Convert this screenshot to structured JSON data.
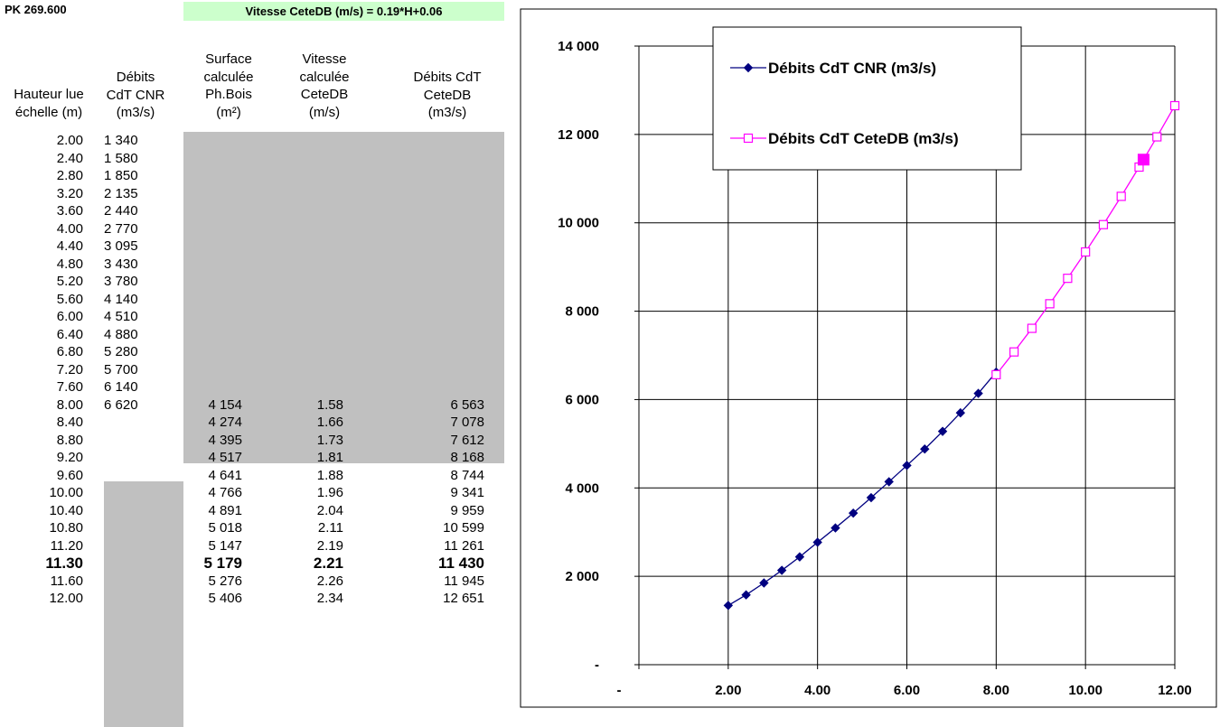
{
  "header": {
    "pk": "PK  269.600",
    "formula": "Vitesse CeteDB (m/s) = 0.19*H+0.06"
  },
  "table": {
    "columns": [
      "Hauteur lue\néchelle (m)",
      "Débits\nCdT CNR\n(m3/s)",
      "Surface\ncalculée\nPh.Bois\n(m²)",
      "Vitesse\ncalculée\nCeteDB\n(m/s)",
      "Débits CdT\nCeteDB\n(m3/s)"
    ],
    "rows": [
      {
        "h": "2.00",
        "cnr": "1 340",
        "s": "",
        "v": "",
        "q": ""
      },
      {
        "h": "2.40",
        "cnr": "1 580",
        "s": "",
        "v": "",
        "q": ""
      },
      {
        "h": "2.80",
        "cnr": "1 850",
        "s": "",
        "v": "",
        "q": ""
      },
      {
        "h": "3.20",
        "cnr": "2 135",
        "s": "",
        "v": "",
        "q": ""
      },
      {
        "h": "3.60",
        "cnr": "2 440",
        "s": "",
        "v": "",
        "q": ""
      },
      {
        "h": "4.00",
        "cnr": "2 770",
        "s": "",
        "v": "",
        "q": ""
      },
      {
        "h": "4.40",
        "cnr": "3 095",
        "s": "",
        "v": "",
        "q": ""
      },
      {
        "h": "4.80",
        "cnr": "3 430",
        "s": "",
        "v": "",
        "q": ""
      },
      {
        "h": "5.20",
        "cnr": "3 780",
        "s": "",
        "v": "",
        "q": ""
      },
      {
        "h": "5.60",
        "cnr": "4 140",
        "s": "",
        "v": "",
        "q": ""
      },
      {
        "h": "6.00",
        "cnr": "4 510",
        "s": "",
        "v": "",
        "q": ""
      },
      {
        "h": "6.40",
        "cnr": "4 880",
        "s": "",
        "v": "",
        "q": ""
      },
      {
        "h": "6.80",
        "cnr": "5 280",
        "s": "",
        "v": "",
        "q": ""
      },
      {
        "h": "7.20",
        "cnr": "5 700",
        "s": "",
        "v": "",
        "q": ""
      },
      {
        "h": "7.60",
        "cnr": "6 140",
        "s": "",
        "v": "",
        "q": ""
      },
      {
        "h": "8.00",
        "cnr": "6 620",
        "s": "4 154",
        "v": "1.58",
        "q": "6 563"
      },
      {
        "h": "8.40",
        "cnr": "",
        "s": "4 274",
        "v": "1.66",
        "q": "7 078"
      },
      {
        "h": "8.80",
        "cnr": "",
        "s": "4 395",
        "v": "1.73",
        "q": "7 612"
      },
      {
        "h": "9.20",
        "cnr": "",
        "s": "4 517",
        "v": "1.81",
        "q": "8 168"
      },
      {
        "h": "9.60",
        "cnr": "",
        "s": "4 641",
        "v": "1.88",
        "q": "8 744"
      },
      {
        "h": "10.00",
        "cnr": "",
        "s": "4 766",
        "v": "1.96",
        "q": "9 341"
      },
      {
        "h": "10.40",
        "cnr": "",
        "s": "4 891",
        "v": "2.04",
        "q": "9 959"
      },
      {
        "h": "10.80",
        "cnr": "",
        "s": "5 018",
        "v": "2.11",
        "q": "10 599"
      },
      {
        "h": "11.20",
        "cnr": "",
        "s": "5 147",
        "v": "2.19",
        "q": "11 261"
      },
      {
        "h": "11.30",
        "cnr": "",
        "s": "5 179",
        "v": "2.21",
        "q": "11 430",
        "bold": true
      },
      {
        "h": "11.60",
        "cnr": "",
        "s": "5 276",
        "v": "2.26",
        "q": "11 945"
      },
      {
        "h": "12.00",
        "cnr": "",
        "s": "5 406",
        "v": "2.34",
        "q": "12 651"
      }
    ]
  },
  "chart_data": {
    "type": "line",
    "title": "",
    "xlabel": "",
    "ylabel": "",
    "xlim": [
      0,
      12
    ],
    "ylim": [
      0,
      14000
    ],
    "x_ticks": [
      0,
      2,
      4,
      6,
      8,
      10,
      12
    ],
    "x_tick_labels": [
      "-",
      "2.00",
      "4.00",
      "6.00",
      "8.00",
      "10.00",
      "12.00"
    ],
    "y_ticks": [
      0,
      2000,
      4000,
      6000,
      8000,
      10000,
      12000,
      14000
    ],
    "y_tick_labels": [
      "-",
      "2 000",
      "4 000",
      "6 000",
      "8 000",
      "10 000",
      "12 000",
      "14 000"
    ],
    "grid": true,
    "legend_position": "top-right",
    "series": [
      {
        "name": "Débits CdT CNR (m3/s)",
        "color": "#000080",
        "marker": "diamond",
        "x": [
          2.0,
          2.4,
          2.8,
          3.2,
          3.6,
          4.0,
          4.4,
          4.8,
          5.2,
          5.6,
          6.0,
          6.4,
          6.8,
          7.2,
          7.6,
          8.0
        ],
        "y": [
          1340,
          1580,
          1850,
          2135,
          2440,
          2770,
          3095,
          3430,
          3780,
          4140,
          4510,
          4880,
          5280,
          5700,
          6140,
          6620
        ]
      },
      {
        "name": "Débits CdT CeteDB (m3/s)",
        "color": "#ff00ff",
        "marker": "square-open",
        "x": [
          8.0,
          8.4,
          8.8,
          9.2,
          9.6,
          10.0,
          10.4,
          10.8,
          11.2,
          11.6,
          12.0
        ],
        "y": [
          6563,
          7078,
          7612,
          8168,
          8744,
          9341,
          9959,
          10599,
          11261,
          11945,
          12651
        ]
      }
    ],
    "highlight": {
      "x": 11.3,
      "y": 11430,
      "color": "#ff00ff",
      "marker": "square-filled"
    }
  }
}
